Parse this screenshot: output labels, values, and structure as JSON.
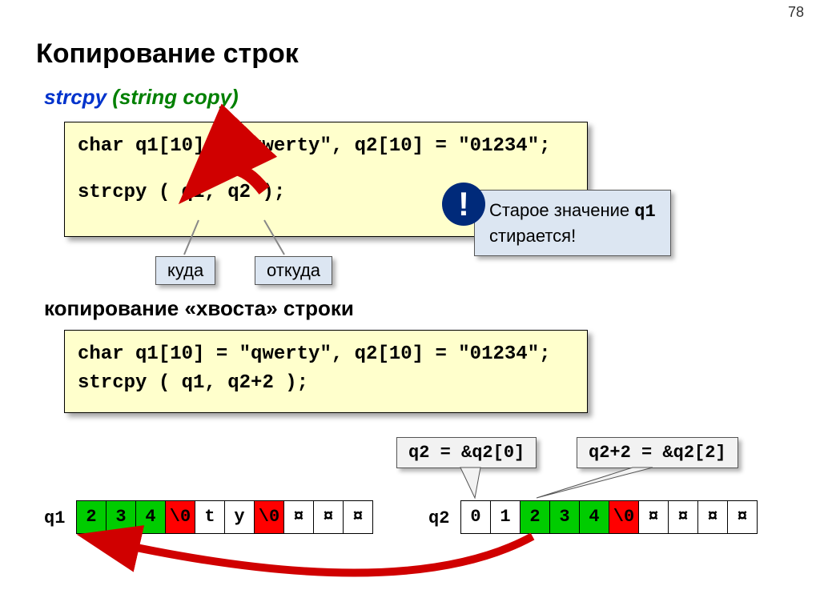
{
  "pageNum": "78",
  "title": "Копирование строк",
  "subtitle_fn": "strcpy",
  "subtitle_comment": " (string copy)",
  "code1_line1": "char q1[10] = \"qwerty\", q2[10] = \"01234\";",
  "code1_line2": "strcpy ( q1, q2 );",
  "label_kuda": "куда",
  "label_otkuda": "откуда",
  "note_text1": "Старое значение ",
  "note_code": "q1",
  "note_text2": "стирается!",
  "excl": "!",
  "section2": "копирование «хвоста» строки",
  "code2_line1": "char q1[10] = \"qwerty\", q2[10] = \"01234\";",
  "code2_line2": "strcpy ( q1, q2+2 );",
  "callout1": "q2 = &q2[0]",
  "callout2": "q2+2 = &q2[2]",
  "arr1_lbl": "q1",
  "arr2_lbl": "q2",
  "array1": [
    {
      "v": "2",
      "c": "green"
    },
    {
      "v": "3",
      "c": "green"
    },
    {
      "v": "4",
      "c": "green"
    },
    {
      "v": "\\0",
      "c": "red"
    },
    {
      "v": "t",
      "c": "white"
    },
    {
      "v": "y",
      "c": "white"
    },
    {
      "v": "\\0",
      "c": "red"
    },
    {
      "v": "¤",
      "c": "white"
    },
    {
      "v": "¤",
      "c": "white"
    },
    {
      "v": "¤",
      "c": "white"
    }
  ],
  "array2": [
    {
      "v": "0",
      "c": "white"
    },
    {
      "v": "1",
      "c": "white"
    },
    {
      "v": "2",
      "c": "green"
    },
    {
      "v": "3",
      "c": "green"
    },
    {
      "v": "4",
      "c": "green"
    },
    {
      "v": "\\0",
      "c": "red"
    },
    {
      "v": "¤",
      "c": "white"
    },
    {
      "v": "¤",
      "c": "white"
    },
    {
      "v": "¤",
      "c": "white"
    },
    {
      "v": "¤",
      "c": "white"
    }
  ],
  "colors": {
    "green": "#00cc00",
    "red": "#ff0000",
    "codebg": "#ffffcc",
    "labelbg": "#dce6f2",
    "calloutbg": "#f2f2f2",
    "arrow_red": "#d00000"
  }
}
